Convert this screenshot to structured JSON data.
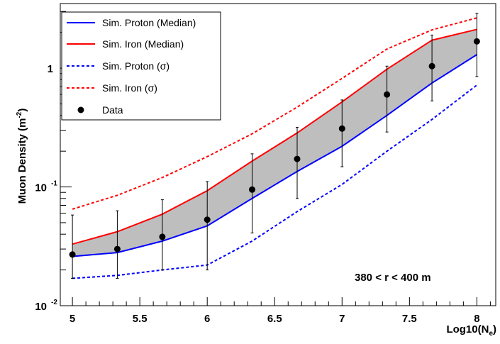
{
  "chart_data": {
    "type": "line",
    "title": "",
    "xlabel": "Log10(N",
    "xlabel_sub": "e",
    "xlabel_close": ")",
    "ylabel": "Muon Density (m",
    "ylabel_sup": "-2",
    "ylabel_close": ")",
    "yscale": "log",
    "xlim": [
      4.91,
      8.14
    ],
    "ylim": [
      0.01,
      3.5
    ],
    "grid": false,
    "legend_position": "top-left",
    "x": [
      5.0,
      5.333,
      5.667,
      6.0,
      6.333,
      6.667,
      7.0,
      7.333,
      7.667,
      8.0
    ],
    "x_ticks": [
      5,
      5.5,
      6,
      6.5,
      7,
      7.5,
      8
    ],
    "x_tick_labels": [
      "5",
      "5.5",
      "6",
      "6.5",
      "7",
      "7.5",
      "8"
    ],
    "y_ticks_major": [
      {
        "value": 0.01,
        "base": "10",
        "exp": "-2"
      },
      {
        "value": 0.1,
        "base": "10",
        "exp": "-1"
      },
      {
        "value": 1,
        "base": "1",
        "exp": ""
      }
    ],
    "band": {
      "between": [
        "Sim. Proton (Median)",
        "Sim. Iron (Median)"
      ],
      "color": "#bebebe"
    },
    "series": [
      {
        "name": "Sim. Proton (Median)",
        "color": "#0000ff",
        "style": "solid",
        "values": [
          0.026,
          0.028,
          0.035,
          0.047,
          0.08,
          0.135,
          0.22,
          0.4,
          0.75,
          1.3
        ]
      },
      {
        "name": "Sim. Iron (Median)",
        "color": "#ff0000",
        "style": "solid",
        "values": [
          0.033,
          0.042,
          0.059,
          0.093,
          0.165,
          0.285,
          0.52,
          0.98,
          1.72,
          2.12
        ]
      },
      {
        "name": "Sim. Proton (σ)",
        "color": "#0000ff",
        "style": "dashed",
        "values": [
          0.017,
          0.018,
          0.02,
          0.022,
          0.035,
          0.062,
          0.105,
          0.2,
          0.37,
          0.72
        ]
      },
      {
        "name": "Sim. Iron (σ)",
        "color": "#ff0000",
        "style": "dashed",
        "values": [
          0.065,
          0.085,
          0.12,
          0.18,
          0.28,
          0.47,
          0.82,
          1.45,
          2.1,
          2.65
        ]
      }
    ],
    "data_points": {
      "name": "Data",
      "color": "#000000",
      "y": [
        0.027,
        0.03,
        0.038,
        0.053,
        0.095,
        0.172,
        0.31,
        0.6,
        1.04,
        1.68
      ],
      "ylow": [
        0.017,
        0.017,
        0.02,
        0.02,
        0.041,
        0.08,
        0.148,
        0.29,
        0.53,
        0.85
      ],
      "yhigh": [
        0.058,
        0.063,
        0.078,
        0.111,
        0.19,
        0.318,
        0.54,
        1.04,
        1.9,
        2.9
      ]
    },
    "annotation": "380 < r < 400 m"
  }
}
